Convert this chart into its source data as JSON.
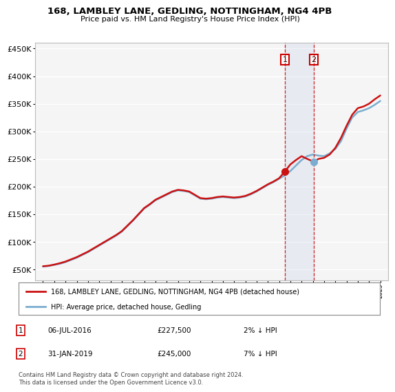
{
  "title": "168, LAMBLEY LANE, GEDLING, NOTTINGHAM, NG4 4PB",
  "subtitle": "Price paid vs. HM Land Registry's House Price Index (HPI)",
  "background_color": "#ffffff",
  "plot_bg_color": "#f5f5f5",
  "legend_label_red": "168, LAMBLEY LANE, GEDLING, NOTTINGHAM, NG4 4PB (detached house)",
  "legend_label_blue": "HPI: Average price, detached house, Gedling",
  "annotation1_label": "1",
  "annotation1_date": "06-JUL-2016",
  "annotation1_price": "£227,500",
  "annotation1_hpi": "2% ↓ HPI",
  "annotation2_label": "2",
  "annotation2_date": "31-JAN-2019",
  "annotation2_price": "£245,000",
  "annotation2_hpi": "7% ↓ HPI",
  "footnote": "Contains HM Land Registry data © Crown copyright and database right 2024.\nThis data is licensed under the Open Government Licence v3.0.",
  "ylim": [
    30000,
    460000
  ],
  "yticks": [
    50000,
    100000,
    150000,
    200000,
    250000,
    300000,
    350000,
    400000,
    450000
  ],
  "xlim_start": 1994.3,
  "xlim_end": 2025.7,
  "sale1_year": 2016.52,
  "sale1_price": 227500,
  "sale2_year": 2019.08,
  "sale2_price": 245000,
  "hpi_x": [
    1995,
    1995.5,
    1996,
    1996.5,
    1997,
    1997.5,
    1998,
    1998.5,
    1999,
    1999.5,
    2000,
    2000.5,
    2001,
    2001.5,
    2002,
    2002.5,
    2003,
    2003.5,
    2004,
    2004.5,
    2005,
    2005.5,
    2006,
    2006.5,
    2007,
    2007.5,
    2008,
    2008.5,
    2009,
    2009.5,
    2010,
    2010.5,
    2011,
    2011.5,
    2012,
    2012.5,
    2013,
    2013.5,
    2014,
    2014.5,
    2015,
    2015.5,
    2016,
    2016.5,
    2017,
    2017.5,
    2018,
    2018.5,
    2019,
    2019.5,
    2020,
    2020.5,
    2021,
    2021.5,
    2022,
    2022.5,
    2023,
    2023.5,
    2024,
    2024.5,
    2025
  ],
  "hpi_y": [
    55000,
    56000,
    58000,
    60000,
    63000,
    67000,
    71000,
    76000,
    81000,
    87000,
    93000,
    99000,
    105000,
    111000,
    118000,
    128000,
    138000,
    149000,
    160000,
    167000,
    175000,
    180000,
    185000,
    190000,
    193000,
    192000,
    190000,
    184000,
    178000,
    177000,
    178000,
    180000,
    181000,
    180000,
    179000,
    180000,
    182000,
    186000,
    191000,
    197000,
    203000,
    208000,
    214000,
    220000,
    228000,
    238000,
    248000,
    255000,
    258000,
    256000,
    255000,
    260000,
    268000,
    282000,
    305000,
    325000,
    335000,
    338000,
    342000,
    348000,
    355000
  ],
  "red_x": [
    1995,
    1995.5,
    1996,
    1996.5,
    1997,
    1997.5,
    1998,
    1998.5,
    1999,
    1999.5,
    2000,
    2000.5,
    2001,
    2001.5,
    2002,
    2002.5,
    2003,
    2003.5,
    2004,
    2004.5,
    2005,
    2005.5,
    2006,
    2006.5,
    2007,
    2007.5,
    2008,
    2008.5,
    2009,
    2009.5,
    2010,
    2010.5,
    2011,
    2011.5,
    2012,
    2012.5,
    2013,
    2013.5,
    2014,
    2014.5,
    2015,
    2015.5,
    2016,
    2016.52,
    2017,
    2017.5,
    2018,
    2018.5,
    2019.08,
    2019.5,
    2020,
    2020.5,
    2021,
    2021.5,
    2022,
    2022.5,
    2023,
    2023.5,
    2024,
    2024.5,
    2025
  ],
  "red_y": [
    55500,
    56500,
    58500,
    61000,
    64000,
    68000,
    72000,
    77000,
    82000,
    88000,
    94000,
    100000,
    106000,
    112000,
    119000,
    129000,
    139000,
    150000,
    161000,
    168000,
    176000,
    181000,
    186000,
    191000,
    194000,
    193000,
    191000,
    185000,
    179000,
    178000,
    179000,
    181000,
    182000,
    181000,
    180000,
    181000,
    183000,
    187000,
    192000,
    198000,
    204000,
    209000,
    215000,
    227500,
    240000,
    248000,
    255000,
    250000,
    245000,
    250000,
    252000,
    258000,
    270000,
    288000,
    310000,
    330000,
    342000,
    345000,
    350000,
    358000,
    365000
  ]
}
